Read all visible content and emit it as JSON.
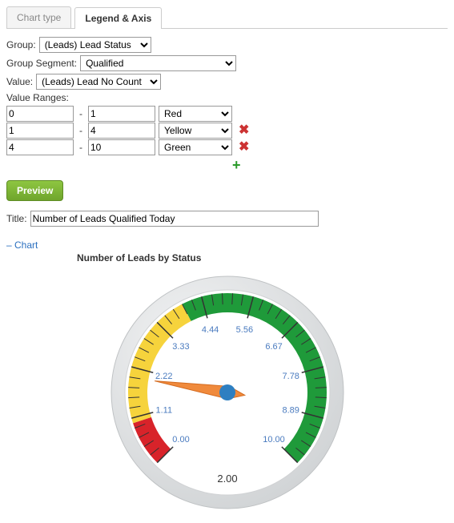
{
  "tabs": {
    "chart_type": "Chart type",
    "legend_axis": "Legend & Axis",
    "active": "legend_axis"
  },
  "form": {
    "group_label": "Group:",
    "group_value": "(Leads) Lead Status",
    "group_segment_label": "Group Segment:",
    "group_segment_value": "Qualified",
    "value_label": "Value:",
    "value_value": "(Leads) Lead No Count",
    "value_ranges_label": "Value Ranges:"
  },
  "ranges": [
    {
      "from": "0",
      "to": "1",
      "color_label": "Red",
      "color_hex": "#d8232a",
      "removable": false
    },
    {
      "from": "1",
      "to": "4",
      "color_label": "Yellow",
      "color_hex": "#f6d33c",
      "removable": true
    },
    {
      "from": "4",
      "to": "10",
      "color_label": "Green",
      "color_hex": "#1f9a3a",
      "removable": true
    }
  ],
  "preview_label": "Preview",
  "title_label": "Title:",
  "title_value": "Number of Leads Qualified Today",
  "chart_link_text": "Chart",
  "chart": {
    "type": "gauge",
    "title": "Number of Leads by Status",
    "value": 2.0,
    "value_text": "2.00",
    "min": 0,
    "max": 10,
    "start_angle": 225,
    "end_angle": -45,
    "bezel_outer": 145,
    "bezel_inner": 128,
    "scale_outer": 124,
    "scale_inner": 100,
    "bezel_color": "#cfd2d4",
    "bezel_highlight": "#f2f3f4",
    "face_color": "#ffffff",
    "tick_color": "#333333",
    "label_color": "#4a7bbf",
    "label_fontsize": 11,
    "value_fontsize": 13,
    "value_color": "#333333",
    "needle_color": "#f08a3c",
    "needle_stroke": "#d46a1e",
    "hub_color": "#2e7fc1",
    "segments": [
      {
        "from": 0,
        "to": 1,
        "color": "#d8232a"
      },
      {
        "from": 1,
        "to": 4,
        "color": "#f6d33c"
      },
      {
        "from": 4,
        "to": 10,
        "color": "#1f9a3a"
      }
    ],
    "major_ticks": [
      0.0,
      1.11,
      2.22,
      3.33,
      4.44,
      5.56,
      6.67,
      7.78,
      8.89,
      10.0
    ],
    "tick_labels": [
      "0.00",
      "1.11",
      "2.22",
      "3.33",
      "4.44",
      "5.56",
      "6.67",
      "7.78",
      "8.89",
      "10.00"
    ],
    "minor_ticks_per_major": 5
  }
}
